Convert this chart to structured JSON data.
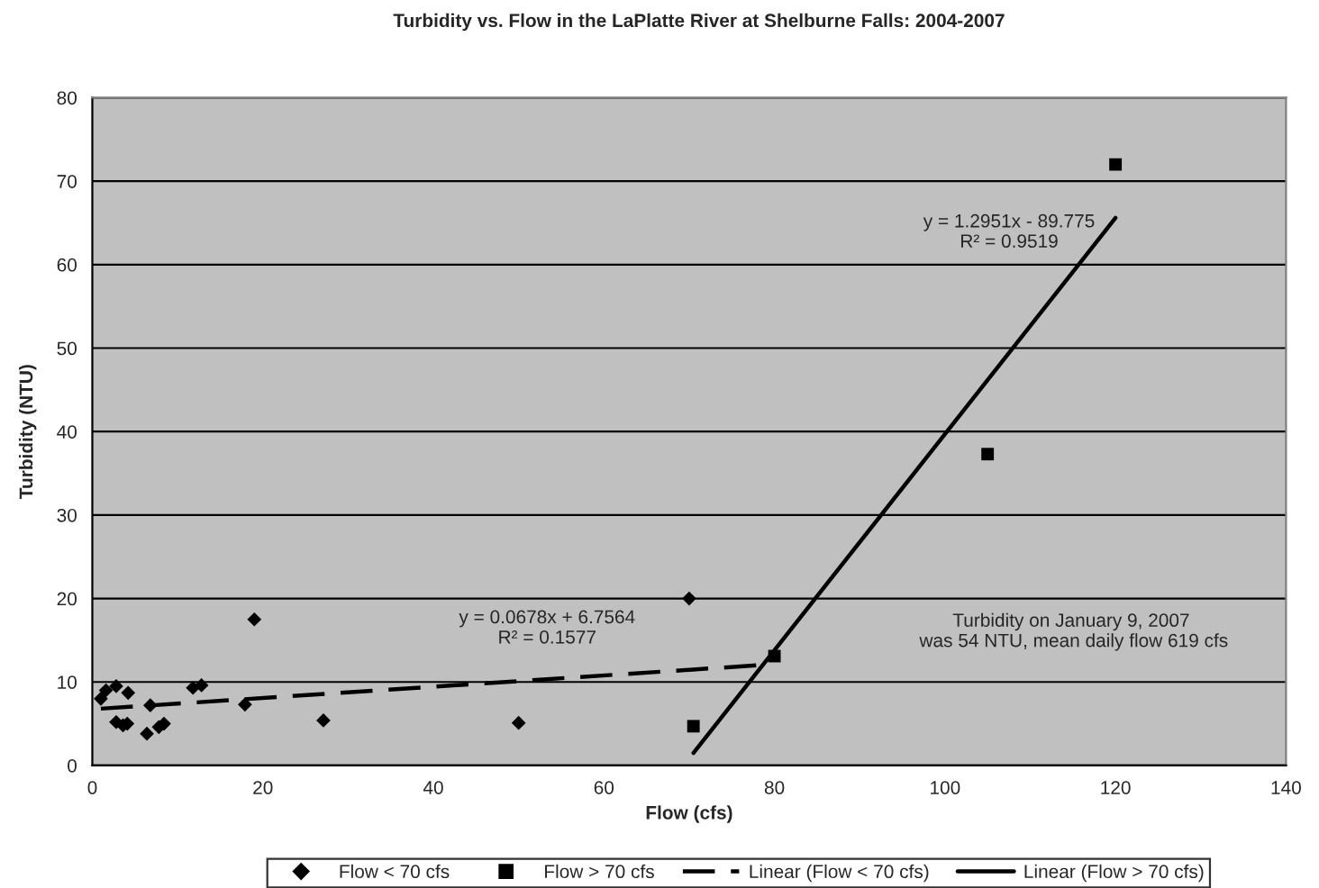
{
  "chart_data": {
    "type": "scatter",
    "title": "Turbidity vs. Flow in the LaPlatte River at Shelburne Falls: 2004-2007",
    "xlabel": "Flow (cfs)",
    "ylabel": "Turbidity (NTU)",
    "series": [
      {
        "name": "Flow < 70 cfs",
        "marker": "diamond",
        "color": "#000000",
        "x": [
          1,
          1.6,
          2.8,
          4.2,
          2.8,
          3.6,
          4.1,
          6.4,
          6.8,
          7.8,
          8.4,
          11.8,
          12.8,
          17.9,
          19,
          27.1,
          50,
          70
        ],
        "values": [
          8.0,
          9.0,
          9.5,
          8.7,
          5.2,
          4.8,
          5.0,
          3.8,
          7.2,
          4.6,
          5.0,
          9.3,
          9.6,
          7.3,
          17.5,
          5.4,
          5.1,
          20
        ]
      },
      {
        "name": "Flow > 70 cfs",
        "marker": "square",
        "color": "#000000",
        "x": [
          70.5,
          80,
          105,
          120
        ],
        "values": [
          4.7,
          13.1,
          37.3,
          72
        ]
      },
      {
        "name": "Linear (Flow < 70 cfs)",
        "type": "line",
        "marker": "none",
        "line_style": "dashed",
        "color": "#000000",
        "x": [
          1,
          79.5
        ],
        "values": [
          6.8,
          12.1
        ]
      },
      {
        "name": "Linear (Flow > 70 cfs)",
        "type": "line",
        "marker": "none",
        "line_style": "solid",
        "color": "#000000",
        "x": [
          70.5,
          120
        ],
        "values": [
          1.5,
          65.6
        ]
      }
    ],
    "xlim": [
      0,
      140
    ],
    "xticks": [
      0,
      20,
      40,
      60,
      80,
      100,
      120,
      140
    ],
    "ylim": [
      0,
      80
    ],
    "yticks": [
      0,
      10,
      20,
      30,
      40,
      50,
      60,
      70,
      80
    ],
    "grid": "y",
    "legend": "bottom",
    "annotations": [
      "y = 0.0678x + 6.7564\nR² = 0.1577",
      "y = 1.2951x - 89.775\nR² = 0.9519",
      "Turbidity on January 9, 2007\n was 54 NTU, mean daily flow 619 cfs"
    ]
  }
}
